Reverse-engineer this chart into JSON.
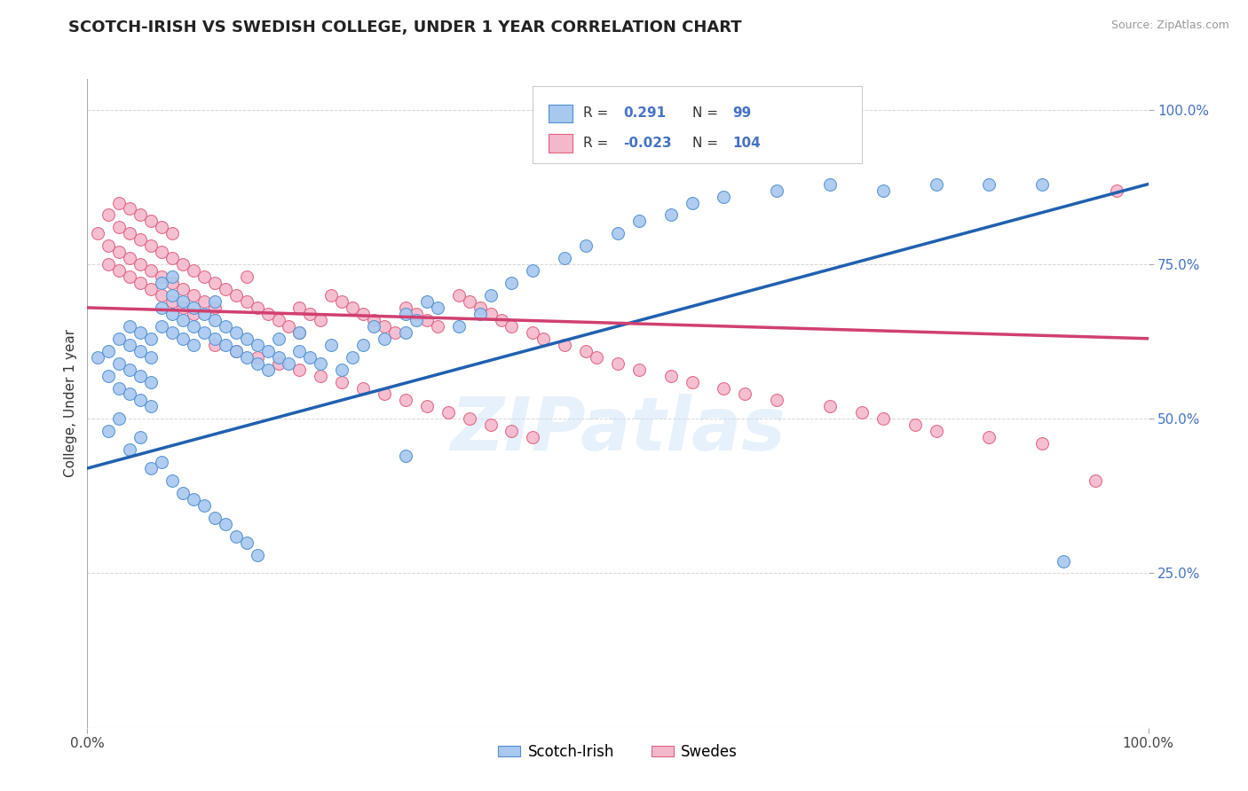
{
  "title": "SCOTCH-IRISH VS SWEDISH COLLEGE, UNDER 1 YEAR CORRELATION CHART",
  "source": "Source: ZipAtlas.com",
  "ylabel": "College, Under 1 year",
  "xlim": [
    0.0,
    1.0
  ],
  "ylim": [
    0.0,
    1.05
  ],
  "R_blue": 0.291,
  "N_blue": 99,
  "R_pink": -0.023,
  "N_pink": 104,
  "blue_color": "#A8C8F0",
  "pink_color": "#F4B8CC",
  "blue_edge_color": "#5090D0",
  "pink_edge_color": "#E06080",
  "blue_line_color": "#2060B0",
  "pink_line_color": "#D04070",
  "legend_blue_label": "Scotch-Irish",
  "legend_pink_label": "Swedes",
  "watermark": "ZIPatlas",
  "title_fontsize": 13,
  "scatter_size": 100,
  "blue_line_start_y": 0.42,
  "blue_line_end_y": 0.88,
  "pink_line_start_y": 0.68,
  "pink_line_end_y": 0.63,
  "blue_x": [
    0.01,
    0.02,
    0.02,
    0.03,
    0.03,
    0.03,
    0.04,
    0.04,
    0.04,
    0.04,
    0.05,
    0.05,
    0.05,
    0.05,
    0.06,
    0.06,
    0.06,
    0.06,
    0.07,
    0.07,
    0.07,
    0.08,
    0.08,
    0.08,
    0.08,
    0.09,
    0.09,
    0.09,
    0.1,
    0.1,
    0.1,
    0.11,
    0.11,
    0.12,
    0.12,
    0.12,
    0.13,
    0.13,
    0.14,
    0.14,
    0.15,
    0.15,
    0.16,
    0.16,
    0.17,
    0.17,
    0.18,
    0.18,
    0.19,
    0.2,
    0.2,
    0.21,
    0.22,
    0.23,
    0.24,
    0.25,
    0.26,
    0.27,
    0.28,
    0.3,
    0.3,
    0.31,
    0.32,
    0.33,
    0.35,
    0.37,
    0.38,
    0.4,
    0.42,
    0.45,
    0.47,
    0.5,
    0.52,
    0.55,
    0.57,
    0.6,
    0.65,
    0.7,
    0.75,
    0.8,
    0.85,
    0.9,
    0.92,
    0.02,
    0.03,
    0.04,
    0.05,
    0.06,
    0.07,
    0.08,
    0.09,
    0.1,
    0.11,
    0.12,
    0.13,
    0.14,
    0.15,
    0.16,
    0.3
  ],
  "blue_y": [
    0.6,
    0.57,
    0.61,
    0.55,
    0.59,
    0.63,
    0.54,
    0.58,
    0.62,
    0.65,
    0.53,
    0.57,
    0.61,
    0.64,
    0.52,
    0.56,
    0.6,
    0.63,
    0.65,
    0.68,
    0.72,
    0.64,
    0.67,
    0.7,
    0.73,
    0.63,
    0.66,
    0.69,
    0.62,
    0.65,
    0.68,
    0.64,
    0.67,
    0.63,
    0.66,
    0.69,
    0.62,
    0.65,
    0.61,
    0.64,
    0.6,
    0.63,
    0.59,
    0.62,
    0.58,
    0.61,
    0.6,
    0.63,
    0.59,
    0.61,
    0.64,
    0.6,
    0.59,
    0.62,
    0.58,
    0.6,
    0.62,
    0.65,
    0.63,
    0.64,
    0.67,
    0.66,
    0.69,
    0.68,
    0.65,
    0.67,
    0.7,
    0.72,
    0.74,
    0.76,
    0.78,
    0.8,
    0.82,
    0.83,
    0.85,
    0.86,
    0.87,
    0.88,
    0.87,
    0.88,
    0.88,
    0.88,
    0.27,
    0.48,
    0.5,
    0.45,
    0.47,
    0.42,
    0.43,
    0.4,
    0.38,
    0.37,
    0.36,
    0.34,
    0.33,
    0.31,
    0.3,
    0.28,
    0.44
  ],
  "pink_x": [
    0.01,
    0.02,
    0.02,
    0.03,
    0.03,
    0.03,
    0.04,
    0.04,
    0.04,
    0.05,
    0.05,
    0.05,
    0.06,
    0.06,
    0.06,
    0.07,
    0.07,
    0.07,
    0.08,
    0.08,
    0.08,
    0.09,
    0.09,
    0.1,
    0.1,
    0.11,
    0.11,
    0.12,
    0.12,
    0.13,
    0.14,
    0.15,
    0.15,
    0.16,
    0.17,
    0.18,
    0.19,
    0.2,
    0.2,
    0.21,
    0.22,
    0.23,
    0.24,
    0.25,
    0.26,
    0.27,
    0.28,
    0.29,
    0.3,
    0.31,
    0.32,
    0.33,
    0.35,
    0.36,
    0.37,
    0.38,
    0.39,
    0.4,
    0.42,
    0.43,
    0.45,
    0.47,
    0.48,
    0.5,
    0.52,
    0.55,
    0.57,
    0.6,
    0.62,
    0.65,
    0.7,
    0.73,
    0.75,
    0.78,
    0.8,
    0.85,
    0.9,
    0.95,
    0.97,
    0.02,
    0.03,
    0.04,
    0.05,
    0.06,
    0.07,
    0.08,
    0.09,
    0.1,
    0.12,
    0.14,
    0.16,
    0.18,
    0.2,
    0.22,
    0.24,
    0.26,
    0.28,
    0.3,
    0.32,
    0.34,
    0.36,
    0.38,
    0.4,
    0.42
  ],
  "pink_y": [
    0.8,
    0.78,
    0.83,
    0.77,
    0.81,
    0.85,
    0.76,
    0.8,
    0.84,
    0.75,
    0.79,
    0.83,
    0.74,
    0.78,
    0.82,
    0.73,
    0.77,
    0.81,
    0.72,
    0.76,
    0.8,
    0.71,
    0.75,
    0.7,
    0.74,
    0.69,
    0.73,
    0.68,
    0.72,
    0.71,
    0.7,
    0.69,
    0.73,
    0.68,
    0.67,
    0.66,
    0.65,
    0.64,
    0.68,
    0.67,
    0.66,
    0.7,
    0.69,
    0.68,
    0.67,
    0.66,
    0.65,
    0.64,
    0.68,
    0.67,
    0.66,
    0.65,
    0.7,
    0.69,
    0.68,
    0.67,
    0.66,
    0.65,
    0.64,
    0.63,
    0.62,
    0.61,
    0.6,
    0.59,
    0.58,
    0.57,
    0.56,
    0.55,
    0.54,
    0.53,
    0.52,
    0.51,
    0.5,
    0.49,
    0.48,
    0.47,
    0.46,
    0.4,
    0.87,
    0.75,
    0.74,
    0.73,
    0.72,
    0.71,
    0.7,
    0.69,
    0.68,
    0.67,
    0.62,
    0.61,
    0.6,
    0.59,
    0.58,
    0.57,
    0.56,
    0.55,
    0.54,
    0.53,
    0.52,
    0.51,
    0.5,
    0.49,
    0.48,
    0.47
  ]
}
